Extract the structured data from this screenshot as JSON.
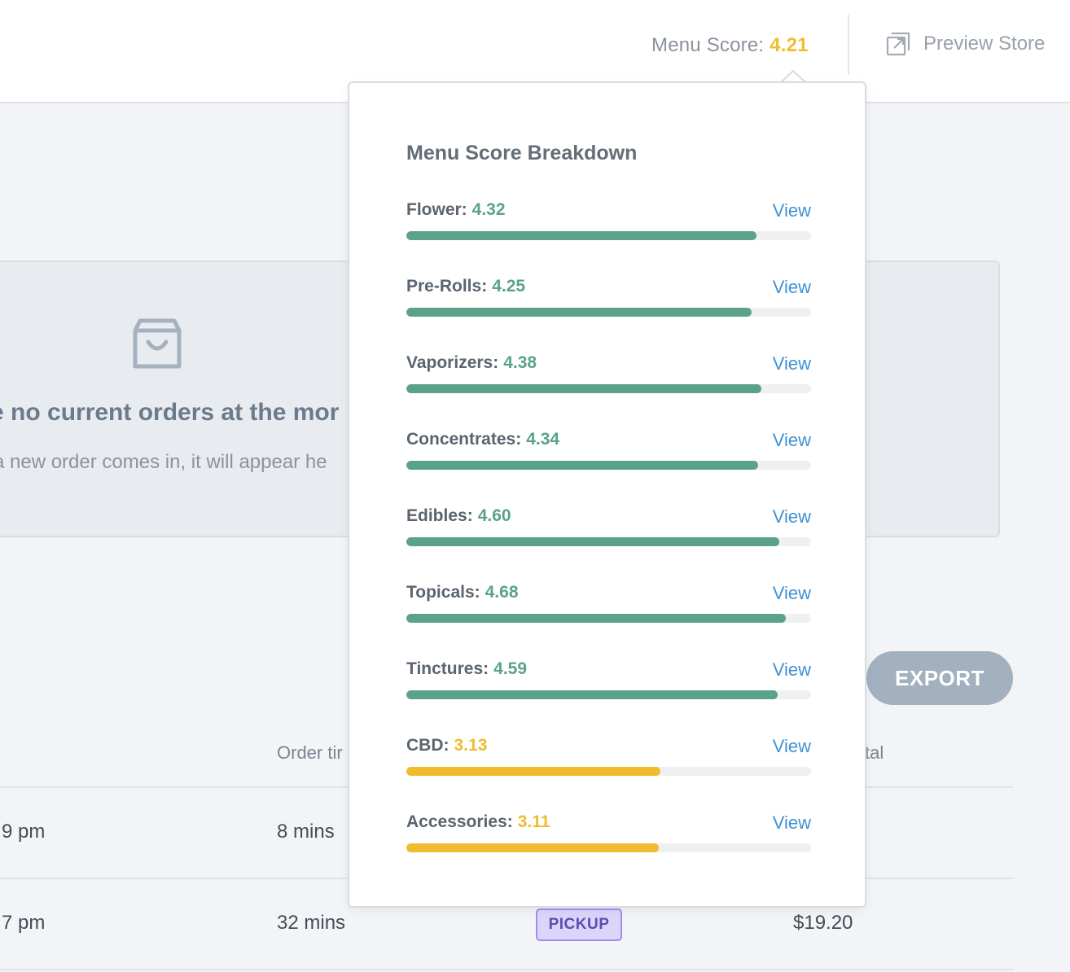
{
  "header": {
    "menu_score_label": "Menu Score:",
    "menu_score_value": "4.21",
    "preview_label": "Preview Store"
  },
  "empty_state": {
    "title": "e no current orders at the mor",
    "subtitle": "a new order comes in, it will appear he"
  },
  "export_label": "EXPORT",
  "table": {
    "headers": {
      "order_time": "Order tir",
      "total": "tal"
    },
    "rows": [
      {
        "time": "9 pm",
        "order_time": "8 mins",
        "total": ""
      },
      {
        "time": "7 pm",
        "order_time": "32 mins",
        "badge": "PICKUP",
        "total": "$19.20"
      }
    ]
  },
  "breakdown": {
    "title": "Menu Score Breakdown",
    "view_label": "View",
    "max_score": 5,
    "categories": [
      {
        "name": "Flower:",
        "score": "4.32",
        "fill": 0.865,
        "status": "good"
      },
      {
        "name": "Pre-Rolls:",
        "score": "4.25",
        "fill": 0.853,
        "status": "good"
      },
      {
        "name": "Vaporizers:",
        "score": "4.38",
        "fill": 0.877,
        "status": "good"
      },
      {
        "name": "Concentrates:",
        "score": "4.34",
        "fill": 0.869,
        "status": "good"
      },
      {
        "name": "Edibles:",
        "score": "4.60",
        "fill": 0.921,
        "status": "good"
      },
      {
        "name": "Topicals:",
        "score": "4.68",
        "fill": 0.937,
        "status": "good"
      },
      {
        "name": "Tinctures:",
        "score": "4.59",
        "fill": 0.917,
        "status": "good"
      },
      {
        "name": "CBD:",
        "score": "3.13",
        "fill": 0.628,
        "status": "warn"
      },
      {
        "name": "Accessories:",
        "score": "3.11",
        "fill": 0.624,
        "status": "warn"
      }
    ]
  },
  "colors": {
    "good": "#5aa288",
    "warn": "#f0bc2e",
    "link": "#3f91d6",
    "score_accent": "#f1bd2f"
  }
}
